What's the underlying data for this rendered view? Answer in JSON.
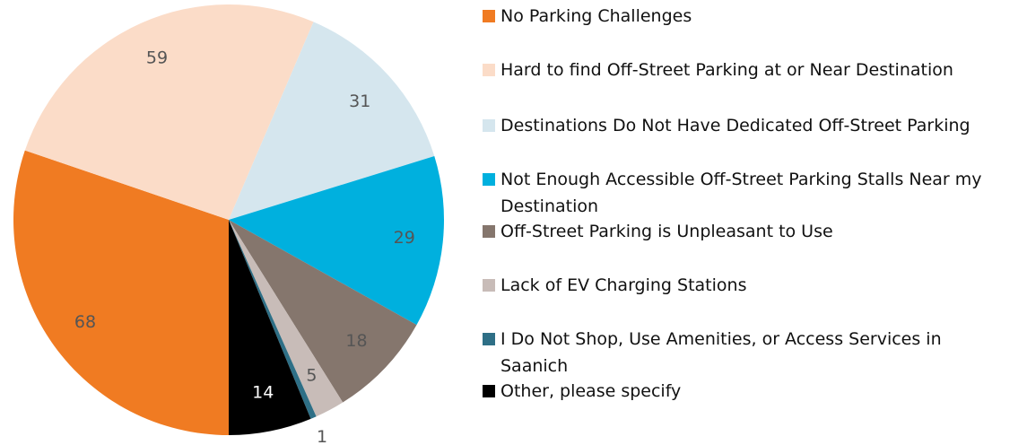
{
  "chart_data": {
    "type": "pie",
    "categories": [
      "No Parking Challenges",
      "Hard to find Off-Street Parking at or Near Destination",
      "Destinations Do Not Have Dedicated Off-Street Parking",
      "Not Enough Accessible Off-Street Parking Stalls Near my Destination",
      "Off-Street Parking is Unpleasant to Use",
      "Lack of EV Charging Stations",
      "I Do Not Shop, Use Amenities, or Access Services in Saanich",
      "Other, please specify"
    ],
    "values": [
      68,
      59,
      31,
      29,
      18,
      5,
      1,
      14
    ],
    "colors": [
      "#f07b22",
      "#fbdcc8",
      "#d5e6ee",
      "#00b0de",
      "#85766d",
      "#c8bcb8",
      "#2e6f86",
      "#000000"
    ],
    "legend": "right"
  }
}
